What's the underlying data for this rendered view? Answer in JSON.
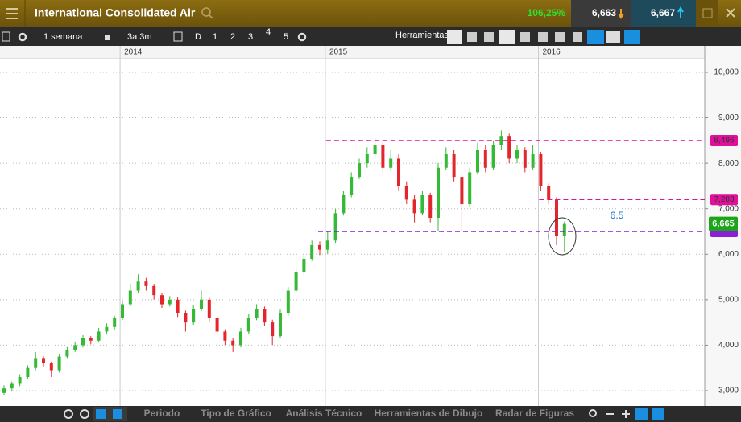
{
  "header": {
    "title": "International Consolidated Air",
    "change": "106,25%",
    "bid": "6,663",
    "ask": "6,667"
  },
  "toolbar": {
    "period": "1 semana",
    "range": "3a 3m",
    "buttons": [
      "D",
      "1",
      "2",
      "3",
      "4",
      "5"
    ],
    "tools": "Herramientas"
  },
  "bottom_bar": {
    "tabs": [
      "Periodo",
      "Tipo de Gráfico",
      "Análisis Técnico",
      "Herramientas de Dibujo",
      "Radar de Figuras"
    ]
  },
  "chart_data": {
    "type": "candlestick",
    "ohlc": [
      [
        2950,
        3120,
        2900,
        3050
      ],
      [
        3050,
        3200,
        2980,
        3150
      ],
      [
        3150,
        3360,
        3100,
        3300
      ],
      [
        3300,
        3560,
        3250,
        3500
      ],
      [
        3500,
        3850,
        3450,
        3700
      ],
      [
        3700,
        3760,
        3520,
        3600
      ],
      [
        3600,
        3640,
        3300,
        3450
      ],
      [
        3450,
        3800,
        3400,
        3750
      ],
      [
        3750,
        3960,
        3700,
        3900
      ],
      [
        3900,
        4080,
        3850,
        4000
      ],
      [
        4000,
        4220,
        3950,
        4150
      ],
      [
        4150,
        4200,
        4020,
        4100
      ],
      [
        4100,
        4380,
        4060,
        4300
      ],
      [
        4300,
        4480,
        4250,
        4400
      ],
      [
        4400,
        4650,
        4350,
        4600
      ],
      [
        4600,
        4980,
        4550,
        4900
      ],
      [
        4900,
        5350,
        4850,
        5200
      ],
      [
        5200,
        5560,
        5150,
        5400
      ],
      [
        5400,
        5480,
        5200,
        5300
      ],
      [
        5300,
        5350,
        5000,
        5100
      ],
      [
        5100,
        5150,
        4820,
        4900
      ],
      [
        4900,
        5080,
        4850,
        5000
      ],
      [
        5000,
        5050,
        4620,
        4700
      ],
      [
        4700,
        4760,
        4300,
        4500
      ],
      [
        4500,
        4870,
        4450,
        4800
      ],
      [
        4800,
        5200,
        4750,
        5000
      ],
      [
        5000,
        5050,
        4520,
        4600
      ],
      [
        4600,
        4650,
        4220,
        4300
      ],
      [
        4300,
        4350,
        4000,
        4100
      ],
      [
        4100,
        4150,
        3850,
        4000
      ],
      [
        4000,
        4380,
        3950,
        4300
      ],
      [
        4300,
        4680,
        4250,
        4600
      ],
      [
        4600,
        4900,
        4550,
        4800
      ],
      [
        4800,
        4850,
        4420,
        4500
      ],
      [
        4500,
        4560,
        4000,
        4200
      ],
      [
        4200,
        4780,
        4150,
        4700
      ],
      [
        4700,
        5280,
        4650,
        5200
      ],
      [
        5200,
        5680,
        5150,
        5600
      ],
      [
        5600,
        6000,
        5550,
        5900
      ],
      [
        5900,
        6300,
        5850,
        6200
      ],
      [
        6200,
        6280,
        5980,
        6100
      ],
      [
        6100,
        6500,
        6000,
        6300
      ],
      [
        6300,
        7000,
        6250,
        6900
      ],
      [
        6900,
        7400,
        6850,
        7300
      ],
      [
        7300,
        7800,
        7250,
        7700
      ],
      [
        7700,
        8100,
        7650,
        8000
      ],
      [
        8000,
        8350,
        7900,
        8200
      ],
      [
        8200,
        8550,
        8100,
        8400
      ],
      [
        8400,
        8500,
        7800,
        7900
      ],
      [
        7900,
        8300,
        7850,
        8100
      ],
      [
        8100,
        8200,
        7400,
        7500
      ],
      [
        7500,
        7600,
        7100,
        7200
      ],
      [
        7200,
        7300,
        6700,
        6900
      ],
      [
        6900,
        7400,
        6850,
        7300
      ],
      [
        7300,
        7350,
        6700,
        6800
      ],
      [
        6800,
        8000,
        6500,
        7900
      ],
      [
        7900,
        8350,
        7850,
        8200
      ],
      [
        8200,
        8300,
        7600,
        7700
      ],
      [
        7700,
        7750,
        6500,
        7100
      ],
      [
        7100,
        7900,
        7050,
        7800
      ],
      [
        7800,
        8450,
        7750,
        8300
      ],
      [
        8300,
        8400,
        7800,
        7900
      ],
      [
        7900,
        8500,
        7850,
        8400
      ],
      [
        8400,
        8720,
        8300,
        8600
      ],
      [
        8600,
        8650,
        8000,
        8100
      ],
      [
        8100,
        8400,
        8000,
        8300
      ],
      [
        8300,
        8350,
        7800,
        7900
      ],
      [
        7900,
        8400,
        7850,
        8200
      ],
      [
        8200,
        8250,
        7400,
        7500
      ],
      [
        7500,
        7550,
        7100,
        7200
      ],
      [
        7200,
        7250,
        6200,
        6400
      ],
      [
        6400,
        6720,
        6050,
        6665
      ]
    ],
    "up_color": "#36b936",
    "down_color": "#e3262b",
    "period_starts": [
      {
        "index": 15,
        "label": "2014"
      },
      {
        "index": 41,
        "label": "2015"
      },
      {
        "index": 68,
        "label": "2016"
      }
    ],
    "ylim": [
      2664,
      10300
    ],
    "yticks": [
      {
        "value": 3000,
        "label": "3,000"
      },
      {
        "value": 4000,
        "label": "4,000"
      },
      {
        "value": 5000,
        "label": "5,000"
      },
      {
        "value": 6000,
        "label": "6,000"
      },
      {
        "value": 7000,
        "label": "7,000"
      },
      {
        "value": 8000,
        "label": "8,000"
      },
      {
        "value": 9000,
        "label": "9,000"
      },
      {
        "value": 10000,
        "label": "10,000"
      }
    ],
    "levels": [
      {
        "value": 8496,
        "label": "8,496",
        "color": "#e0109a",
        "start_index": 41
      },
      {
        "value": 7203,
        "label": "7,203",
        "color": "#e0109a",
        "start_index": 68
      },
      {
        "value": 6500,
        "color": "#8a1fd6",
        "start_index": 40
      }
    ],
    "annotation": "6.5",
    "last_price": {
      "value": 6665,
      "label": "6,665",
      "color": "#1aa51a"
    },
    "grid": true
  }
}
